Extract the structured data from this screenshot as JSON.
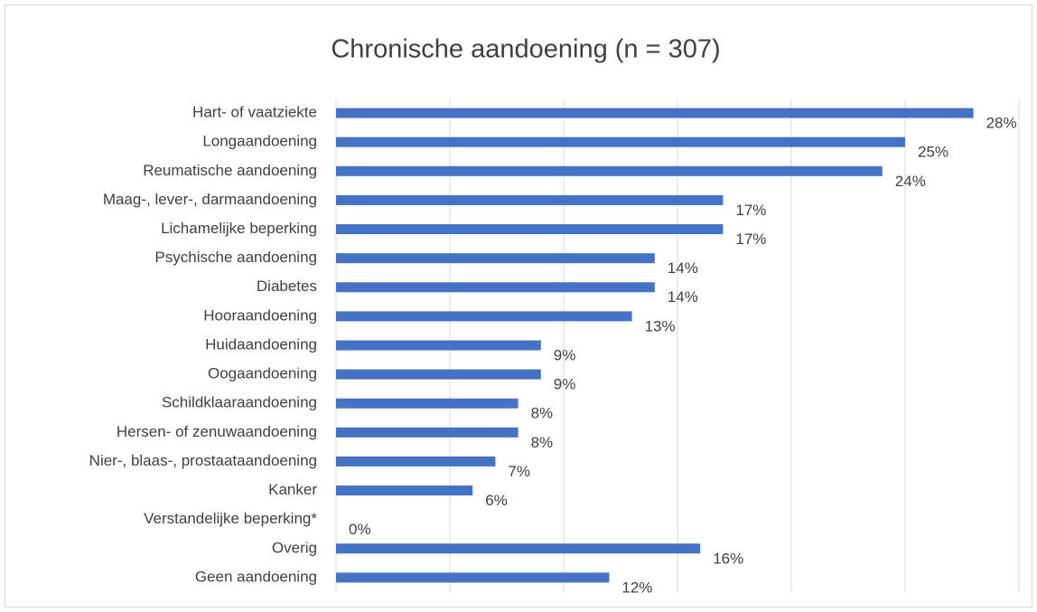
{
  "chart_data": {
    "type": "bar",
    "orientation": "horizontal",
    "title": "Chronische aandoening (n = 307)",
    "categories": [
      "Hart- of vaatziekte",
      "Longaandoening",
      "Reumatische aandoening",
      "Maag-, lever-, darmaandoening",
      "Lichamelijke beperking",
      "Psychische aandoening",
      "Diabetes",
      "Hooraandoening",
      "Huidaandoening",
      "Oogaandoening",
      "Schildklaaraandoening",
      "Hersen- of zenuwaandoening",
      "Nier-, blaas-, prostaataandoening",
      "Kanker",
      "Verstandelijke beperking*",
      "Overig",
      "Geen aandoening"
    ],
    "values": [
      28,
      25,
      24,
      17,
      17,
      14,
      14,
      13,
      9,
      9,
      8,
      8,
      7,
      6,
      0,
      16,
      12
    ],
    "value_labels": [
      "28%",
      "25%",
      "24%",
      "17%",
      "17%",
      "14%",
      "14%",
      "13%",
      "9%",
      "9%",
      "8%",
      "8%",
      "7%",
      "6%",
      "0%",
      "16%",
      "12%"
    ],
    "color": "#4472c4",
    "xlim": [
      0,
      30
    ],
    "xticks": [
      0,
      5,
      10,
      15,
      20,
      25,
      30
    ],
    "grid": true
  }
}
